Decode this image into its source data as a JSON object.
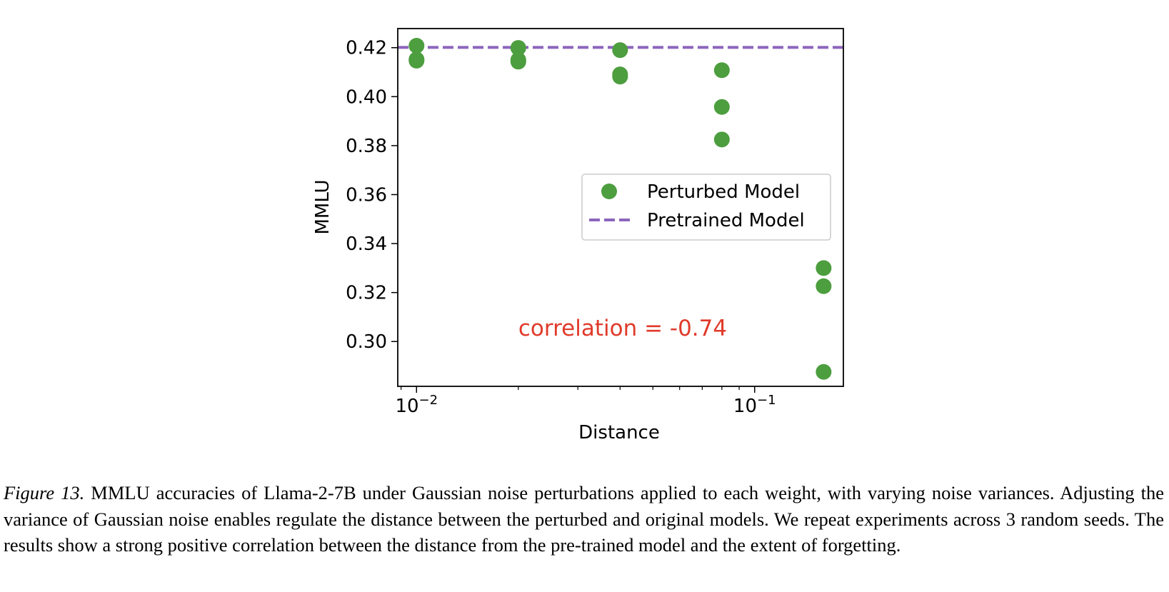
{
  "chart_data": {
    "type": "scatter",
    "xlabel": "Distance",
    "ylabel": "MMLU",
    "xscale": "log",
    "xlim": [
      0.0088,
      0.183
    ],
    "ylim": [
      0.2817,
      0.4278
    ],
    "yticks": [
      0.3,
      0.32,
      0.34,
      0.36,
      0.38,
      0.4,
      0.42
    ],
    "ytick_labels": [
      "0.30",
      "0.32",
      "0.34",
      "0.36",
      "0.38",
      "0.40",
      "0.42"
    ],
    "xticks_major": [
      {
        "base": "10",
        "exp": "−2",
        "value": 0.01
      },
      {
        "base": "10",
        "exp": "−1",
        "value": 0.1
      }
    ],
    "grid": false,
    "legend": "center-right",
    "series": [
      {
        "name": "Perturbed Model",
        "kind": "scatter",
        "color": "#4c9e3e",
        "points": [
          {
            "x": 0.01,
            "y": 0.4208
          },
          {
            "x": 0.01,
            "y": 0.4147
          },
          {
            "x": 0.01,
            "y": 0.4152
          },
          {
            "x": 0.02,
            "y": 0.4199
          },
          {
            "x": 0.02,
            "y": 0.4143
          },
          {
            "x": 0.02,
            "y": 0.415
          },
          {
            "x": 0.04,
            "y": 0.419
          },
          {
            "x": 0.04,
            "y": 0.4082
          },
          {
            "x": 0.04,
            "y": 0.4091
          },
          {
            "x": 0.08,
            "y": 0.4108
          },
          {
            "x": 0.08,
            "y": 0.3958
          },
          {
            "x": 0.08,
            "y": 0.3825
          },
          {
            "x": 0.16,
            "y": 0.33
          },
          {
            "x": 0.16,
            "y": 0.3226
          },
          {
            "x": 0.16,
            "y": 0.2876
          }
        ]
      },
      {
        "name": "Pretrained Model",
        "kind": "hline",
        "color": "#8c66bc",
        "y": 0.4201
      }
    ],
    "annotation": {
      "text": "correlation = -0.74",
      "color": "#e03a2a"
    }
  },
  "caption": {
    "label": "Figure 13.",
    "text": " MMLU accuracies of Llama-2-7B under Gaussian noise perturbations applied to each weight, with varying noise variances. Adjusting the variance of Gaussian noise enables regulate the distance between the perturbed and original models. We repeat experiments across 3 random seeds. The results show a strong positive correlation between the distance from the pre-trained model and the extent of forgetting."
  }
}
